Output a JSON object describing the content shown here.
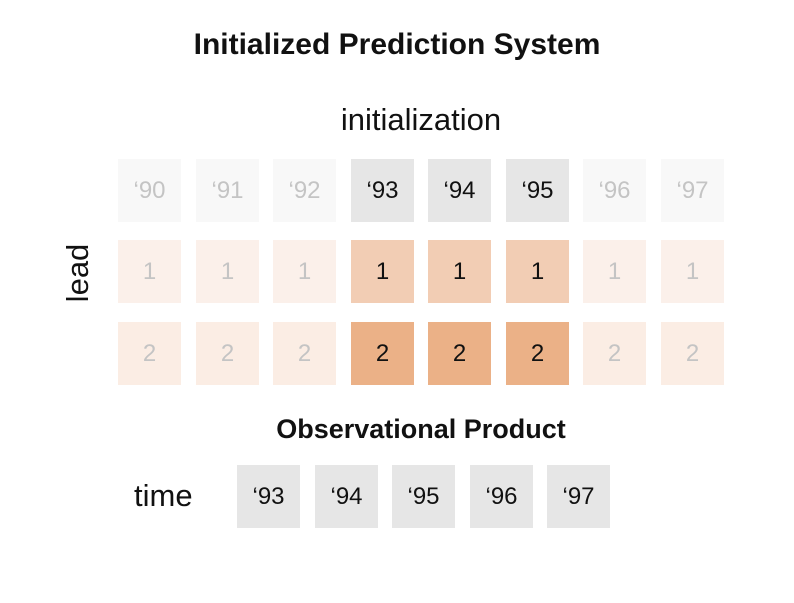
{
  "title": "Initialized Prediction System",
  "init_axis_label": "initialization",
  "lead_axis_label": "lead",
  "init_years": [
    "‘90",
    "‘91",
    "‘92",
    "‘93",
    "‘94",
    "‘95",
    "‘96",
    "‘97"
  ],
  "highlighted_indices": [
    3,
    4,
    5
  ],
  "leads": [
    "1",
    "2"
  ],
  "obs_title": "Observational Product",
  "time_axis_label": "time",
  "obs_years": [
    "‘93",
    "‘94",
    "‘95",
    "‘96",
    "‘97"
  ],
  "colors": {
    "year_faded": "#f8f8f8",
    "year_highlight": "#e6e6e6",
    "lead1_faded": "#fbf0ea",
    "lead1_highlight": "#f2cdb4",
    "lead2_faded": "#fbede4",
    "lead2_highlight": "#ebb187",
    "obs_cell": "#e6e6e6"
  }
}
